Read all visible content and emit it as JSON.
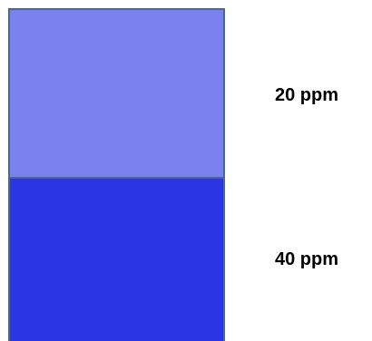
{
  "layers": [
    {
      "label": "20 ppm",
      "color": "#7b82ef"
    },
    {
      "label": "40 ppm",
      "color": "#2b35e2"
    }
  ]
}
